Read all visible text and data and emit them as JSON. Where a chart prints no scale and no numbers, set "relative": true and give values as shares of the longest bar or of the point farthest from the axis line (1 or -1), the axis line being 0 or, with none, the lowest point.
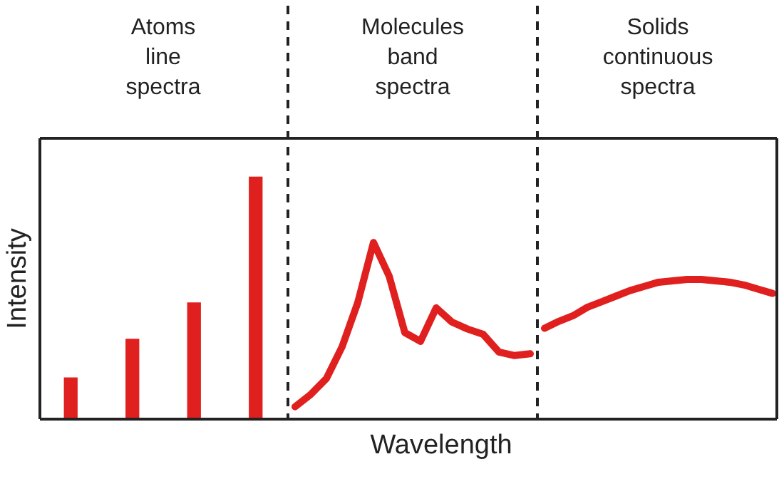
{
  "chart_data": [
    {
      "type": "bar",
      "relative": true,
      "title": "Atoms",
      "subtitle": "line spectra",
      "ylabel": "Intensity",
      "categories": [
        null,
        null,
        null,
        null
      ],
      "values": [
        0.17,
        0.33,
        0.48,
        1
      ],
      "color": "#e0201f"
    },
    {
      "type": "line",
      "relative": true,
      "title": "Molecules",
      "subtitle": "band spectra",
      "xlabel": "Wavelength",
      "categories": [
        null,
        null,
        null,
        null,
        null,
        null,
        null,
        null,
        null,
        null,
        null,
        null,
        null,
        null,
        null,
        null
      ],
      "values": [
        0.07,
        0.14,
        0.23,
        0.41,
        0.66,
        1,
        0.81,
        0.49,
        0.44,
        0.63,
        0.55,
        0.51,
        0.48,
        0.38,
        0.36,
        0.37
      ],
      "color": "#e0201f"
    },
    {
      "type": "line",
      "relative": true,
      "title": "Solids",
      "subtitle": "continuous spectra",
      "categories": [
        null,
        null,
        null,
        null,
        null,
        null,
        null,
        null,
        null,
        null,
        null,
        null,
        null,
        null,
        null,
        null,
        null
      ],
      "values": [
        0.65,
        0.7,
        0.74,
        0.8,
        0.84,
        0.88,
        0.92,
        0.95,
        0.98,
        0.99,
        1,
        1,
        0.99,
        0.98,
        0.96,
        0.93,
        0.9
      ],
      "color": "#e0201f"
    }
  ]
}
